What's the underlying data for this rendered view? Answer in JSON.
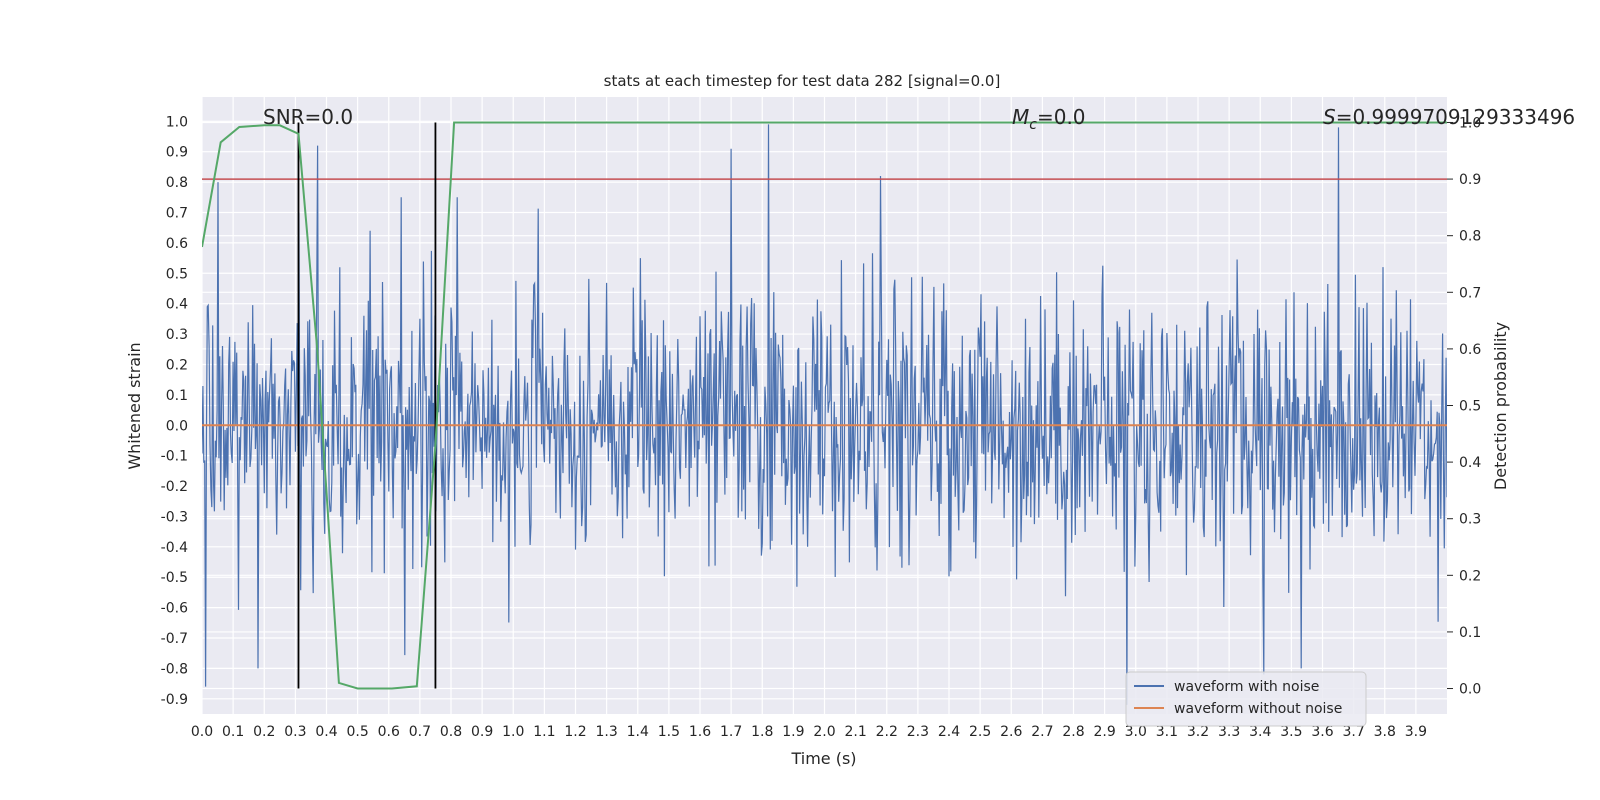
{
  "chart_data": {
    "type": "line",
    "title": "stats at each timestep for test data 282 [signal=0.0]",
    "xlabel": "Time (s)",
    "ylabel": "Whitened strain",
    "y2label": "Detection probability",
    "xlim": [
      0.0,
      4.0
    ],
    "ylim": [
      -0.95,
      1.08
    ],
    "y2lim": [
      -0.045,
      1.045
    ],
    "x_ticks": [
      "0.0",
      "0.1",
      "0.2",
      "0.3",
      "0.4",
      "0.5",
      "0.6",
      "0.7",
      "0.8",
      "0.9",
      "1.0",
      "1.1",
      "1.2",
      "1.3",
      "1.4",
      "1.5",
      "1.6",
      "1.7",
      "1.8",
      "1.9",
      "2.0",
      "2.1",
      "2.2",
      "2.3",
      "2.4",
      "2.5",
      "2.6",
      "2.7",
      "2.8",
      "2.9",
      "3.0",
      "3.1",
      "3.2",
      "3.3",
      "3.4",
      "3.5",
      "3.6",
      "3.7",
      "3.8",
      "3.9"
    ],
    "y_ticks": [
      "1.0",
      "0.9",
      "0.8",
      "0.7",
      "0.6",
      "0.5",
      "0.4",
      "0.3",
      "0.2",
      "0.1",
      "0.0",
      "-0.1",
      "-0.2",
      "-0.3",
      "-0.4",
      "-0.5",
      "-0.6",
      "-0.7",
      "-0.8",
      "-0.9"
    ],
    "y2_ticks": [
      "1.0",
      "0.9",
      "0.8",
      "0.7",
      "0.6",
      "0.5",
      "0.4",
      "0.3",
      "0.2",
      "0.1",
      "0.0"
    ],
    "annotations": {
      "snr": "SNR=0.0",
      "mc_symbol": "M",
      "mc_sub": "c",
      "mc_value": "=0.0",
      "s_symbol": "S",
      "s_value": "=0.9999709129333496"
    },
    "series": [
      {
        "name": "waveform with noise",
        "color": "#4c72b0",
        "kind": "noise",
        "axis": "left",
        "spikes": [
          [
            0.01,
            -0.86
          ],
          [
            0.05,
            0.8
          ],
          [
            0.18,
            -0.8
          ],
          [
            0.31,
            0.7
          ],
          [
            0.37,
            0.92
          ],
          [
            0.64,
            0.75
          ],
          [
            0.82,
            0.75
          ],
          [
            1.7,
            0.91
          ],
          [
            1.82,
            1.0
          ],
          [
            2.18,
            0.82
          ],
          [
            3.65,
            0.98
          ],
          [
            2.97,
            -0.95
          ],
          [
            3.53,
            -0.8
          ],
          [
            3.41,
            -0.82
          ]
        ]
      },
      {
        "name": "waveform without noise",
        "color": "#dd8452",
        "kind": "constant",
        "axis": "left",
        "value": 0.0
      },
      {
        "color": "#55a868",
        "kind": "probability",
        "axis": "right",
        "x": [
          0.0,
          0.06,
          0.12,
          0.2,
          0.25,
          0.31,
          0.37,
          0.44,
          0.5,
          0.61,
          0.69,
          0.75,
          0.81,
          4.0
        ],
        "y": [
          0.78,
          0.965,
          0.992,
          0.995,
          0.995,
          0.98,
          0.6,
          0.01,
          0.0,
          0.0,
          0.004,
          0.43,
          1.0,
          1.0
        ]
      },
      {
        "color": "#c44e52",
        "kind": "threshold",
        "axis": "right",
        "value": 0.9
      }
    ],
    "vlines": [
      0.31,
      0.75
    ],
    "grid": true,
    "legend_position": "lower-right"
  }
}
